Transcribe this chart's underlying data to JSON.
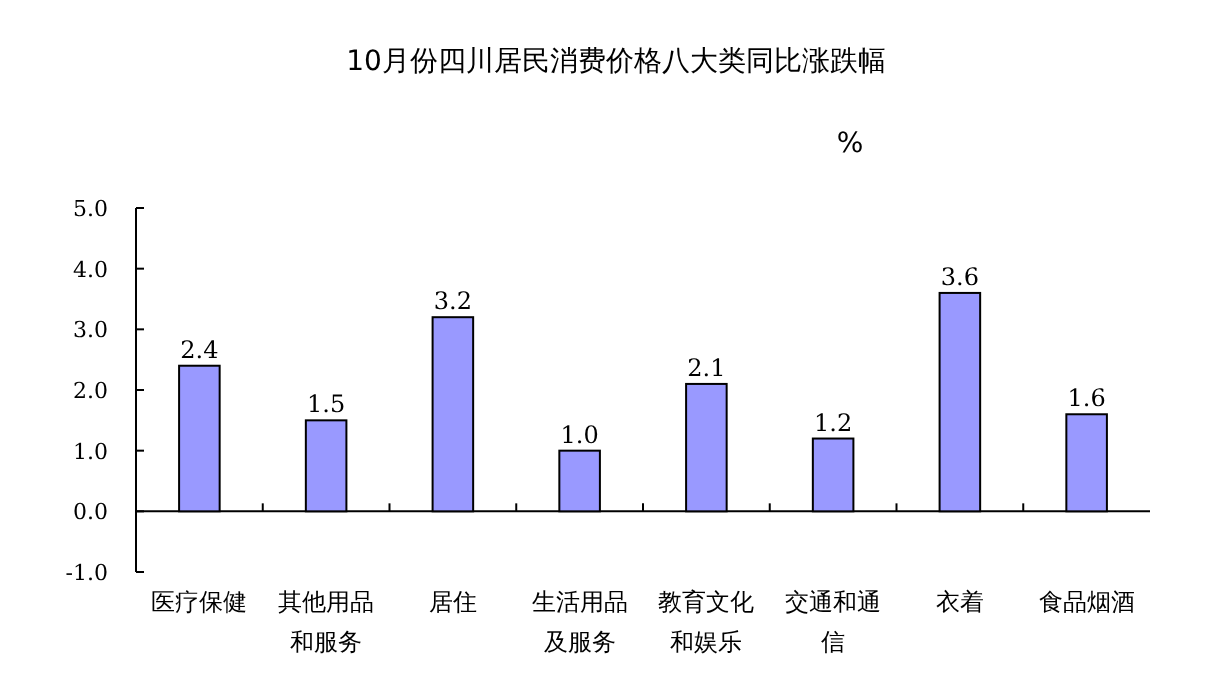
{
  "chart_data": {
    "type": "bar",
    "title": "10月份四川居民消费价格八大类同比涨跌幅",
    "ylabel": "%",
    "categories": [
      "医疗保健",
      "其他用品和服务",
      "居住",
      "生活用品及服务",
      "教育文化和娱乐",
      "交通和通信",
      "衣着",
      "食品烟酒"
    ],
    "values": [
      2.4,
      1.5,
      3.2,
      1.0,
      2.1,
      1.2,
      3.6,
      1.6
    ],
    "color": "#9999ff",
    "value_labels": [
      "2.4",
      "1.5",
      "3.2",
      "1.0",
      "2.1",
      "1.2",
      "3.6",
      "1.6"
    ],
    "ylim": [
      -1,
      5
    ],
    "yticks": [
      {
        "value": -1,
        "label": "-1.0"
      },
      {
        "value": 0,
        "label": "0.0"
      },
      {
        "value": 1,
        "label": "1.0"
      },
      {
        "value": 2,
        "label": "2.0"
      },
      {
        "value": 3,
        "label": "3.0"
      },
      {
        "value": 4,
        "label": "4.0"
      },
      {
        "value": 5,
        "label": "5.0"
      }
    ]
  }
}
